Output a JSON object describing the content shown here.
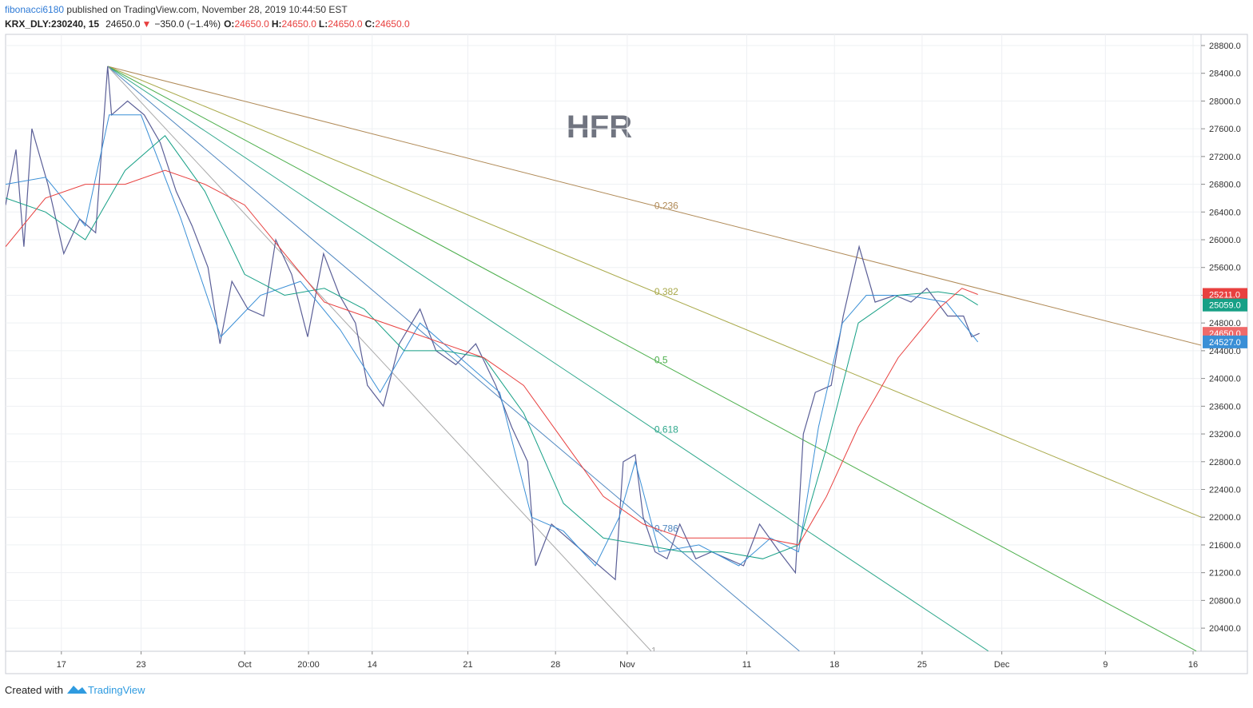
{
  "header": {
    "author": "fibonacci6180",
    "published": " published on TradingView.com, November 28, 2019 10:44:50 EST",
    "symbol": "KRX_DLY:230240, 15",
    "last": "24650.0",
    "arrow": "▼",
    "change": "−350.0 (−1.4%)",
    "o_label": "O:",
    "o": "24650.0",
    "h_label": "H:",
    "h": "24650.0",
    "l_label": "L:",
    "l": "24650.0",
    "c_label": "C:",
    "c": "24650.0"
  },
  "footer": {
    "created": "Created with",
    "brand": "TradingView"
  },
  "chart_data": {
    "type": "line",
    "title": "HFR",
    "xlim": [
      0,
      150
    ],
    "ylim": [
      20067,
      28961
    ],
    "xticks": [
      {
        "value": 7,
        "label": "17"
      },
      {
        "value": 17,
        "label": "23"
      },
      {
        "value": 30,
        "label": "Oct"
      },
      {
        "value": 38,
        "label": "20:00"
      },
      {
        "value": 46,
        "label": "14"
      },
      {
        "value": 58,
        "label": "21"
      },
      {
        "value": 69,
        "label": "28"
      },
      {
        "value": 78,
        "label": "Nov"
      },
      {
        "value": 93,
        "label": "11"
      },
      {
        "value": 104,
        "label": "18"
      },
      {
        "value": 115,
        "label": "25"
      },
      {
        "value": 125,
        "label": "Dec"
      },
      {
        "value": 138,
        "label": "9"
      },
      {
        "value": 149,
        "label": "16"
      }
    ],
    "yticks": [
      {
        "value": 20400,
        "label": "20400.0"
      },
      {
        "value": 20800,
        "label": "20800.0"
      },
      {
        "value": 21200,
        "label": "21200.0"
      },
      {
        "value": 21600,
        "label": "21600.0"
      },
      {
        "value": 22000,
        "label": "22000.0"
      },
      {
        "value": 22400,
        "label": "22400.0"
      },
      {
        "value": 22800,
        "label": "22800.0"
      },
      {
        "value": 23200,
        "label": "23200.0"
      },
      {
        "value": 23600,
        "label": "23600.0"
      },
      {
        "value": 24000,
        "label": "24000.0"
      },
      {
        "value": 24400,
        "label": "24400.0"
      },
      {
        "value": 24800,
        "label": "24800.0"
      },
      {
        "value": 25200,
        "label": "25200.0"
      },
      {
        "value": 25600,
        "label": "25600.0"
      },
      {
        "value": 26000,
        "label": "26000.0"
      },
      {
        "value": 26400,
        "label": "26400.0"
      },
      {
        "value": 26800,
        "label": "26800.0"
      },
      {
        "value": 27200,
        "label": "27200.0"
      },
      {
        "value": 27600,
        "label": "27600.0"
      },
      {
        "value": 28000,
        "label": "28000.0"
      },
      {
        "value": 28400,
        "label": "28400.0"
      },
      {
        "value": 28800,
        "label": "28800.0"
      }
    ],
    "grid": true,
    "series": [
      {
        "color": "#5b5f97",
        "width": 1.2,
        "x": [
          0,
          1.3,
          2.3,
          3.3,
          5.3,
          7.3,
          9.3,
          11.3,
          12.8,
          13.3,
          15.3,
          17.4,
          19.4,
          21.4,
          23.4,
          25.4,
          26.9,
          28.4,
          30.4,
          32.4,
          33.9,
          35.9,
          37.9,
          39.9,
          41.9,
          43.9,
          45.4,
          47.4,
          49.4,
          52,
          54,
          56.5,
          59,
          61.5,
          63.5,
          65.5,
          66.5,
          68.5,
          70.5,
          72.5,
          74.5,
          76.5,
          77.5,
          79,
          80,
          81.5,
          83,
          84.6,
          86.6,
          88.6,
          90.6,
          92.6,
          94.6,
          97.1,
          99.1,
          100.1,
          101.6,
          103.6,
          105.1,
          107.1,
          109.1,
          111.6,
          113.6,
          115.6,
          118.2,
          120.2,
          121.2,
          122.2
        ],
        "values": [
          26500,
          27300,
          25900,
          27600,
          26800,
          25800,
          26300,
          26100,
          28500,
          27800,
          28000,
          27800,
          27400,
          26700,
          26200,
          25600,
          24500,
          25400,
          25000,
          24900,
          26000,
          25500,
          24600,
          25800,
          25200,
          24800,
          23900,
          23600,
          24500,
          25000,
          24400,
          24200,
          24500,
          23900,
          23300,
          22800,
          21300,
          21900,
          21700,
          21500,
          21300,
          21100,
          22800,
          22900,
          22000,
          21500,
          21400,
          21900,
          21400,
          21500,
          21400,
          21300,
          21900,
          21500,
          21200,
          23200,
          23800,
          23900,
          24900,
          25900,
          25100,
          25200,
          25100,
          25300,
          24900,
          24900,
          24600,
          24650
        ]
      },
      {
        "color": "#3a8fd6",
        "width": 1,
        "x": [
          0,
          5,
          10,
          13,
          17,
          22,
          27,
          32,
          37,
          42,
          47,
          52,
          57,
          62,
          66,
          70,
          74,
          77,
          79,
          82,
          87,
          92,
          96,
          99.5,
          102,
          105,
          108,
          113,
          118,
          122
        ],
        "values": [
          26800,
          26900,
          26200,
          27800,
          27800,
          26300,
          24600,
          25200,
          25400,
          24700,
          23800,
          24800,
          24300,
          23800,
          22000,
          21800,
          21300,
          22000,
          22800,
          21500,
          21600,
          21300,
          21700,
          21500,
          23300,
          24800,
          25200,
          25200,
          25100,
          24527
        ]
      },
      {
        "color": "#17a086",
        "width": 1,
        "x": [
          0,
          5,
          10,
          15,
          20,
          25,
          30,
          35,
          40,
          45,
          50,
          55,
          60,
          65,
          70,
          75,
          80,
          85,
          90,
          95,
          99.5,
          103,
          107,
          112,
          117,
          120,
          122
        ],
        "values": [
          26600,
          26400,
          26000,
          27000,
          27500,
          26700,
          25500,
          25200,
          25300,
          25000,
          24400,
          24400,
          24300,
          23500,
          22200,
          21700,
          21600,
          21500,
          21500,
          21400,
          21600,
          23000,
          24800,
          25200,
          25250,
          25200,
          25059
        ]
      },
      {
        "color": "#e8403f",
        "width": 1,
        "x": [
          0,
          5,
          10,
          15,
          20,
          25,
          30,
          35,
          40,
          45,
          50,
          55,
          60,
          65,
          70,
          75,
          80,
          85,
          90,
          95,
          99.5,
          103,
          107,
          112,
          117,
          120,
          122
        ],
        "values": [
          25900,
          26600,
          26800,
          26800,
          27000,
          26800,
          26500,
          25800,
          25100,
          24900,
          24700,
          24500,
          24300,
          23900,
          23100,
          22300,
          21900,
          21700,
          21700,
          21700,
          21600,
          22300,
          23300,
          24300,
          25000,
          25300,
          25211
        ]
      }
    ],
    "fan_lines": [
      {
        "label": "0.236",
        "color": "#b08a57",
        "x": [
          12.8,
          150
        ],
        "values": [
          28500,
          24480
        ]
      },
      {
        "label": "0.382",
        "color": "#a9a94a",
        "x": [
          12.8,
          150
        ],
        "values": [
          28500,
          22000
        ]
      },
      {
        "label": "0.5",
        "color": "#4caf4c",
        "x": [
          12.8,
          149.4
        ],
        "values": [
          28500,
          20070
        ]
      },
      {
        "label": "0.618",
        "color": "#2fa88c",
        "x": [
          12.8,
          123.3
        ],
        "values": [
          28500,
          20070
        ]
      },
      {
        "label": "0.786",
        "color": "#4f87c0",
        "x": [
          12.8,
          99.6
        ],
        "values": [
          28500,
          20070
        ]
      },
      {
        "label": "1",
        "color": "#a8a8a8",
        "x": [
          12.8,
          81
        ],
        "values": [
          28500,
          20070
        ]
      }
    ],
    "price_tags": [
      {
        "value": 25211,
        "label": "25211.0",
        "color": "#e8403f"
      },
      {
        "value": 25059,
        "label": "25059.0",
        "color": "#17a086"
      },
      {
        "value": 24650,
        "label": "24650.0",
        "color": "#ef6a6a"
      },
      {
        "value": 24527,
        "label": "24527.0",
        "color": "#3a8fd6"
      }
    ]
  }
}
